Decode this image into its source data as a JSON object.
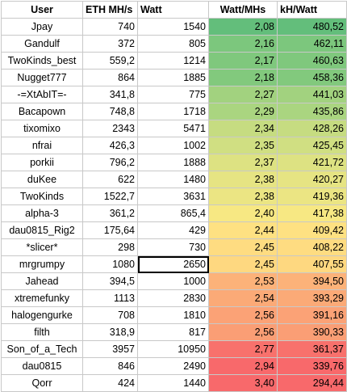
{
  "header": {
    "user": "User",
    "eth": "ETH MH/s",
    "watt": "Watt",
    "watt_per_mhs": "Watt/MHs",
    "kh_per_watt": "kH/Watt"
  },
  "rows": [
    {
      "user": "Jpay",
      "eth": "740",
      "watt": "1540",
      "wpm": "2,08",
      "khw": "480,52",
      "color": "#63be7b"
    },
    {
      "user": "Gandulf",
      "eth": "372",
      "watt": "805",
      "wpm": "2,16",
      "khw": "462,11",
      "color": "#7cc77d"
    },
    {
      "user": "TwoKinds_best",
      "eth": "559,2",
      "watt": "1214",
      "wpm": "2,17",
      "khw": "460,63",
      "color": "#7fc87d"
    },
    {
      "user": "Nugget777",
      "eth": "864",
      "watt": "1885",
      "wpm": "2,18",
      "khw": "458,36",
      "color": "#82c97d"
    },
    {
      "user": "-=XtAbIT=-",
      "eth": "341,8",
      "watt": "775",
      "wpm": "2,27",
      "khw": "441,03",
      "color": "#a2d27f"
    },
    {
      "user": "Bacapown",
      "eth": "748,8",
      "watt": "1718",
      "wpm": "2,29",
      "khw": "435,86",
      "color": "#aad580"
    },
    {
      "user": "tixomixo",
      "eth": "2343",
      "watt": "5471",
      "wpm": "2,34",
      "khw": "428,26",
      "color": "#c6dc81"
    },
    {
      "user": "nfrai",
      "eth": "426,3",
      "watt": "1002",
      "wpm": "2,35",
      "khw": "425,45",
      "color": "#d0df82"
    },
    {
      "user": "porkii",
      "eth": "796,2",
      "watt": "1888",
      "wpm": "2,37",
      "khw": "421,72",
      "color": "#dde282"
    },
    {
      "user": "duKee",
      "eth": "622",
      "watt": "1480",
      "wpm": "2,38",
      "khw": "420,27",
      "color": "#e6e483"
    },
    {
      "user": "TwoKinds",
      "eth": "1522,7",
      "watt": "3631",
      "wpm": "2,38",
      "khw": "419,36",
      "color": "#ebe583"
    },
    {
      "user": "alpha-3",
      "eth": "361,2",
      "watt": "865,4",
      "wpm": "2,40",
      "khw": "417,38",
      "color": "#f7e883"
    },
    {
      "user": "dau0815_Rig2",
      "eth": "175,64",
      "watt": "429",
      "wpm": "2,44",
      "khw": "409,42",
      "color": "#fee182"
    },
    {
      "user": "*slicer*",
      "eth": "298",
      "watt": "730",
      "wpm": "2,45",
      "khw": "408,22",
      "color": "#fedc81"
    },
    {
      "user": "mrgrumpy",
      "eth": "1080",
      "watt": "2650",
      "wpm": "2,45",
      "khw": "407,55",
      "color": "#fed880"
    },
    {
      "user": "Jahead",
      "eth": "394,5",
      "watt": "1000",
      "wpm": "2,53",
      "khw": "394,50",
      "color": "#fcb279"
    },
    {
      "user": "xtremefunky",
      "eth": "1113",
      "watt": "2830",
      "wpm": "2,54",
      "khw": "393,29",
      "color": "#fbaa77"
    },
    {
      "user": "halogengurke",
      "eth": "708",
      "watt": "1810",
      "wpm": "2,56",
      "khw": "391,16",
      "color": "#fba276"
    },
    {
      "user": "filth",
      "eth": "318,9",
      "watt": "817",
      "wpm": "2,56",
      "khw": "390,33",
      "color": "#fa9e75"
    },
    {
      "user": "Son_of_a_Tech",
      "eth": "3957",
      "watt": "10950",
      "wpm": "2,77",
      "khw": "361,37",
      "color": "#f8716c"
    },
    {
      "user": "dau0815",
      "eth": "846",
      "watt": "2490",
      "wpm": "2,94",
      "khw": "339,76",
      "color": "#f8696b"
    },
    {
      "user": "Qorr",
      "eth": "424",
      "watt": "1440",
      "wpm": "3,40",
      "khw": "294,44",
      "color": "#f8696b"
    }
  ],
  "selected_row": 14
}
